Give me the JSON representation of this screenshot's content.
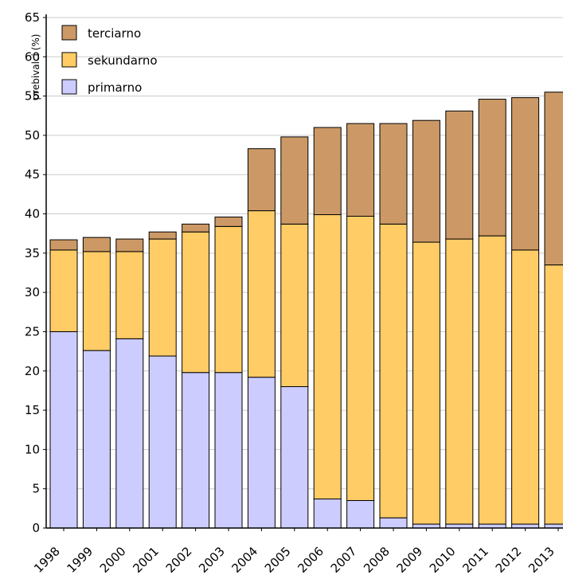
{
  "chart_data": {
    "type": "bar",
    "stacked": true,
    "title": "",
    "xlabel": "",
    "ylabel": "prebivalci (%)",
    "ylim": [
      0,
      65
    ],
    "yticks": [
      0,
      5,
      10,
      15,
      20,
      25,
      30,
      35,
      40,
      45,
      50,
      55,
      60,
      65
    ],
    "grid": true,
    "legend_position": "top-left",
    "categories": [
      "1998",
      "1999",
      "2000",
      "2001",
      "2002",
      "2003",
      "2004",
      "2005",
      "2006",
      "2007",
      "2008",
      "2009",
      "2010",
      "2011",
      "2012",
      "2013"
    ],
    "series": [
      {
        "name": "primarno",
        "color": "#ccccff",
        "values": [
          25.0,
          22.6,
          24.1,
          21.9,
          19.8,
          19.8,
          19.2,
          18.0,
          3.7,
          3.5,
          1.3,
          0.5,
          0.5,
          0.5,
          0.5,
          0.5
        ]
      },
      {
        "name": "sekundarno",
        "color": "#ffcc66",
        "values": [
          10.4,
          12.6,
          11.1,
          14.9,
          17.9,
          18.6,
          21.2,
          20.7,
          36.2,
          36.2,
          37.4,
          35.9,
          36.3,
          36.7,
          34.9,
          33.0
        ]
      },
      {
        "name": "terciarno",
        "color": "#cc9966",
        "values": [
          1.3,
          1.8,
          1.6,
          0.9,
          1.0,
          1.2,
          7.9,
          11.1,
          11.1,
          11.8,
          12.8,
          15.5,
          16.3,
          17.4,
          19.4,
          22.0
        ]
      }
    ]
  }
}
